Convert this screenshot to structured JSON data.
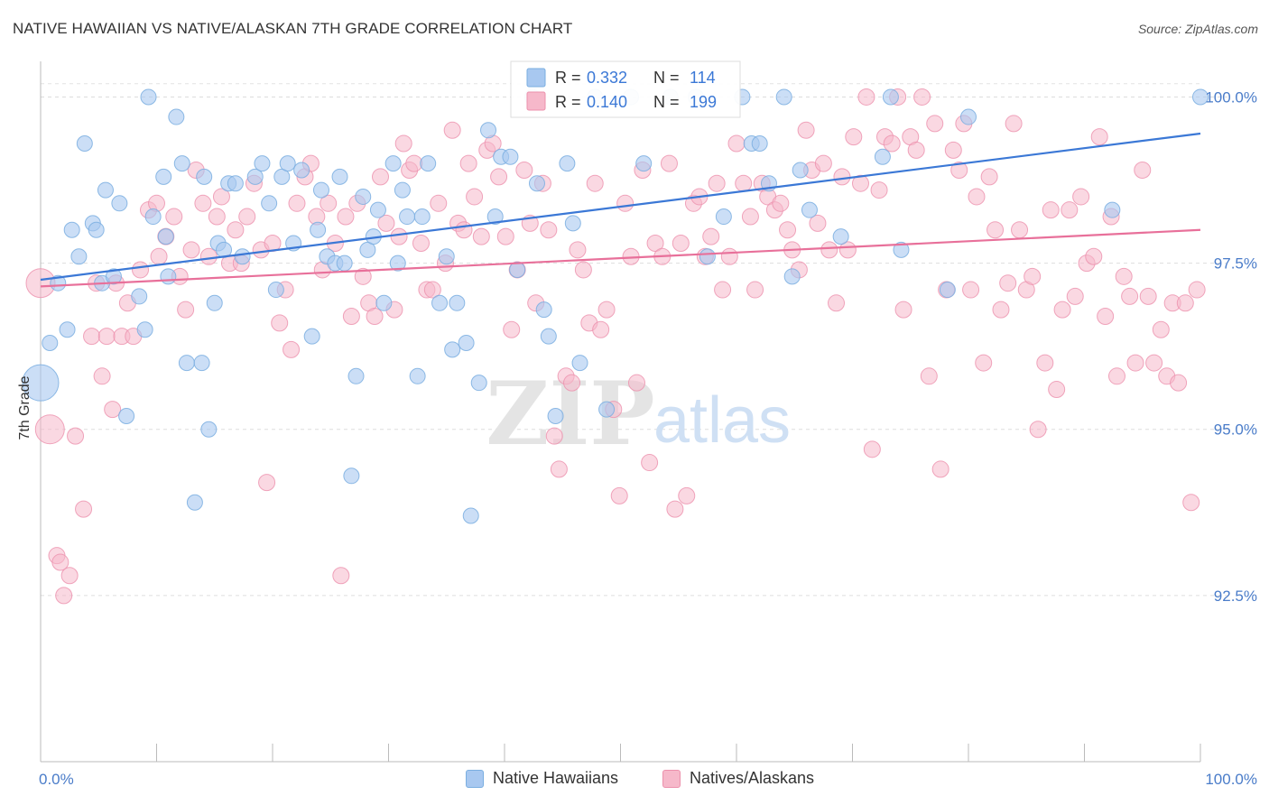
{
  "title": "NATIVE HAWAIIAN VS NATIVE/ALASKAN 7TH GRADE CORRELATION CHART",
  "source": "Source: ZipAtlas.com",
  "watermark": {
    "zip": "ZIP",
    "atlas": "atlas"
  },
  "colors": {
    "blue_fill": "#a8c8f0",
    "blue_stroke": "#7aaee0",
    "blue_line": "#3b78d6",
    "pink_fill": "#f6b8ca",
    "pink_stroke": "#ec90ac",
    "pink_line": "#e8709a",
    "tick_label": "#4a7cc9",
    "grid": "#dddddd"
  },
  "legend": {
    "rows": [
      {
        "series": "Native Hawaiians",
        "r_label": "R =",
        "r_value": "0.332",
        "n_label": "N =",
        "n_value": "114"
      },
      {
        "series": "Natives/Alaskans",
        "r_label": "R =",
        "r_value": "0.140",
        "n_label": "N =",
        "n_value": "199"
      }
    ]
  },
  "bottom_legend": [
    "Native Hawaiians",
    "Natives/Alaskans"
  ],
  "chart_data": {
    "type": "scatter",
    "title": "NATIVE HAWAIIAN VS NATIVE/ALASKAN 7TH GRADE CORRELATION CHART",
    "xlabel": "",
    "ylabel": "7th Grade",
    "xlim": [
      0,
      100
    ],
    "ylim": [
      90.0,
      100.4
    ],
    "x_tick_labels": [
      "0.0%",
      "100.0%"
    ],
    "y_ticks": [
      92.5,
      95.0,
      97.5,
      100.0
    ],
    "y_tick_labels": [
      "92.5%",
      "95.0%",
      "97.5%",
      "100.0%"
    ],
    "grid": "horizontal dashed",
    "series": [
      {
        "name": "Native Hawaiians",
        "color": "#a8c8f0",
        "trend": {
          "x": [
            0,
            100
          ],
          "y": [
            97.25,
            99.45
          ]
        },
        "points": [
          [
            0,
            95.7
          ],
          [
            0.8,
            96.3
          ],
          [
            1.5,
            97.2
          ],
          [
            2.3,
            96.5
          ],
          [
            2.7,
            98.0
          ],
          [
            3.3,
            97.6
          ],
          [
            3.8,
            99.3
          ],
          [
            4.5,
            98.1
          ],
          [
            4.8,
            98.0
          ],
          [
            5.3,
            97.2
          ],
          [
            5.6,
            98.6
          ],
          [
            6.3,
            97.3
          ],
          [
            6.8,
            98.4
          ],
          [
            7.4,
            95.2
          ],
          [
            8.5,
            97.0
          ],
          [
            9.0,
            96.5
          ],
          [
            9.3,
            100.0
          ],
          [
            9.7,
            98.2
          ],
          [
            10.6,
            98.8
          ],
          [
            10.8,
            97.9
          ],
          [
            11.0,
            97.3
          ],
          [
            11.7,
            99.7
          ],
          [
            12.2,
            99.0
          ],
          [
            12.6,
            96.0
          ],
          [
            13.3,
            93.9
          ],
          [
            13.9,
            96.0
          ],
          [
            14.1,
            98.8
          ],
          [
            14.5,
            95.0
          ],
          [
            15.0,
            96.9
          ],
          [
            15.3,
            97.8
          ],
          [
            15.8,
            97.7
          ],
          [
            16.2,
            98.7
          ],
          [
            16.8,
            98.7
          ],
          [
            17.4,
            97.6
          ],
          [
            18.5,
            98.8
          ],
          [
            19.1,
            99.0
          ],
          [
            19.7,
            98.4
          ],
          [
            20.3,
            97.1
          ],
          [
            20.8,
            98.8
          ],
          [
            21.3,
            99.0
          ],
          [
            21.8,
            97.8
          ],
          [
            22.5,
            98.9
          ],
          [
            23.4,
            96.4
          ],
          [
            23.9,
            98.0
          ],
          [
            24.2,
            98.6
          ],
          [
            24.7,
            97.6
          ],
          [
            25.4,
            97.5
          ],
          [
            25.8,
            98.8
          ],
          [
            26.2,
            97.5
          ],
          [
            26.8,
            94.3
          ],
          [
            27.2,
            95.8
          ],
          [
            27.8,
            98.5
          ],
          [
            28.2,
            97.7
          ],
          [
            28.7,
            97.9
          ],
          [
            29.1,
            98.3
          ],
          [
            29.6,
            96.9
          ],
          [
            30.4,
            99.0
          ],
          [
            30.8,
            97.5
          ],
          [
            31.2,
            98.6
          ],
          [
            31.6,
            98.2
          ],
          [
            32.5,
            95.8
          ],
          [
            32.9,
            98.2
          ],
          [
            33.4,
            99.0
          ],
          [
            34.4,
            96.9
          ],
          [
            35.0,
            97.6
          ],
          [
            35.5,
            96.2
          ],
          [
            35.9,
            96.9
          ],
          [
            36.7,
            96.3
          ],
          [
            37.1,
            93.7
          ],
          [
            37.8,
            95.7
          ],
          [
            38.6,
            99.5
          ],
          [
            39.2,
            98.2
          ],
          [
            39.7,
            99.1
          ],
          [
            40.5,
            99.1
          ],
          [
            41.1,
            97.4
          ],
          [
            42.4,
            100.0
          ],
          [
            42.8,
            98.7
          ],
          [
            43.4,
            96.8
          ],
          [
            43.8,
            96.4
          ],
          [
            44.4,
            95.2
          ],
          [
            45.4,
            99.0
          ],
          [
            45.9,
            98.1
          ],
          [
            46.5,
            96.0
          ],
          [
            47.8,
            100.0
          ],
          [
            48.8,
            95.3
          ],
          [
            50.9,
            100.0
          ],
          [
            52.0,
            99.0
          ],
          [
            54.3,
            100.0
          ],
          [
            56.5,
            100.0
          ],
          [
            57.5,
            97.6
          ],
          [
            58.9,
            98.2
          ],
          [
            60.5,
            100.0
          ],
          [
            61.3,
            99.3
          ],
          [
            62.0,
            99.3
          ],
          [
            62.8,
            98.7
          ],
          [
            64.1,
            100.0
          ],
          [
            64.8,
            97.3
          ],
          [
            65.5,
            98.9
          ],
          [
            66.3,
            98.3
          ],
          [
            69.0,
            97.9
          ],
          [
            72.6,
            99.1
          ],
          [
            73.3,
            100.0
          ],
          [
            74.2,
            97.7
          ],
          [
            78.2,
            97.1
          ],
          [
            80.0,
            99.7
          ],
          [
            92.4,
            98.3
          ],
          [
            100.0,
            100.0
          ]
        ]
      },
      {
        "name": "Natives/Alaskans",
        "color": "#f6b8ca",
        "trend": {
          "x": [
            0,
            100
          ],
          "y": [
            97.15,
            98.0
          ]
        },
        "points": [
          [
            0,
            97.2
          ],
          [
            0.8,
            95.0
          ],
          [
            1.4,
            93.1
          ],
          [
            1.7,
            93.0
          ],
          [
            2.0,
            92.5
          ],
          [
            2.5,
            92.8
          ],
          [
            3.0,
            94.9
          ],
          [
            3.7,
            93.8
          ],
          [
            4.4,
            96.4
          ],
          [
            4.8,
            97.2
          ],
          [
            5.3,
            95.8
          ],
          [
            5.7,
            96.4
          ],
          [
            6.2,
            95.3
          ],
          [
            6.5,
            97.2
          ],
          [
            7.0,
            96.4
          ],
          [
            7.5,
            96.9
          ],
          [
            8.0,
            96.4
          ],
          [
            8.6,
            97.4
          ],
          [
            9.3,
            98.3
          ],
          [
            10.0,
            98.4
          ],
          [
            10.2,
            97.6
          ],
          [
            10.8,
            97.9
          ],
          [
            11.5,
            98.2
          ],
          [
            12.0,
            97.3
          ],
          [
            12.5,
            96.8
          ],
          [
            13.0,
            97.7
          ],
          [
            13.4,
            98.9
          ],
          [
            14.0,
            98.4
          ],
          [
            14.5,
            97.6
          ],
          [
            15.2,
            98.2
          ],
          [
            15.6,
            98.5
          ],
          [
            16.3,
            97.5
          ],
          [
            16.8,
            98.0
          ],
          [
            17.3,
            97.5
          ],
          [
            17.8,
            98.2
          ],
          [
            18.4,
            98.7
          ],
          [
            19.0,
            97.7
          ],
          [
            19.5,
            94.2
          ],
          [
            20.0,
            97.8
          ],
          [
            20.6,
            96.6
          ],
          [
            21.1,
            97.1
          ],
          [
            21.6,
            96.2
          ],
          [
            22.1,
            98.4
          ],
          [
            22.8,
            98.8
          ],
          [
            23.3,
            99.0
          ],
          [
            23.8,
            98.2
          ],
          [
            24.3,
            97.4
          ],
          [
            24.8,
            98.4
          ],
          [
            25.4,
            97.8
          ],
          [
            25.9,
            92.8
          ],
          [
            26.3,
            98.2
          ],
          [
            26.8,
            96.7
          ],
          [
            27.3,
            98.4
          ],
          [
            27.8,
            97.3
          ],
          [
            28.3,
            96.9
          ],
          [
            28.8,
            96.7
          ],
          [
            29.3,
            98.8
          ],
          [
            29.8,
            98.1
          ],
          [
            30.5,
            96.8
          ],
          [
            30.9,
            97.9
          ],
          [
            31.3,
            99.3
          ],
          [
            31.8,
            98.9
          ],
          [
            32.2,
            99.0
          ],
          [
            32.8,
            97.8
          ],
          [
            33.3,
            97.1
          ],
          [
            33.8,
            97.1
          ],
          [
            34.3,
            98.4
          ],
          [
            34.9,
            97.5
          ],
          [
            35.5,
            99.5
          ],
          [
            36.0,
            98.1
          ],
          [
            36.5,
            98.0
          ],
          [
            36.9,
            99.0
          ],
          [
            37.4,
            98.5
          ],
          [
            38.0,
            97.9
          ],
          [
            38.5,
            99.2
          ],
          [
            39.0,
            99.3
          ],
          [
            39.5,
            98.8
          ],
          [
            40.1,
            97.9
          ],
          [
            40.6,
            96.5
          ],
          [
            41.1,
            97.4
          ],
          [
            41.7,
            98.9
          ],
          [
            42.2,
            98.1
          ],
          [
            42.7,
            96.9
          ],
          [
            43.3,
            98.7
          ],
          [
            43.8,
            98.0
          ],
          [
            44.3,
            94.9
          ],
          [
            44.7,
            94.4
          ],
          [
            45.3,
            95.8
          ],
          [
            45.8,
            95.7
          ],
          [
            46.3,
            97.7
          ],
          [
            46.8,
            97.4
          ],
          [
            47.3,
            96.6
          ],
          [
            47.8,
            98.7
          ],
          [
            48.3,
            96.5
          ],
          [
            48.8,
            96.8
          ],
          [
            49.4,
            95.3
          ],
          [
            49.9,
            94.0
          ],
          [
            50.4,
            98.4
          ],
          [
            50.9,
            97.6
          ],
          [
            51.4,
            95.7
          ],
          [
            51.9,
            98.9
          ],
          [
            52.5,
            94.5
          ],
          [
            53.0,
            97.8
          ],
          [
            53.6,
            97.6
          ],
          [
            54.2,
            99.0
          ],
          [
            54.7,
            93.8
          ],
          [
            55.2,
            97.8
          ],
          [
            55.7,
            94.0
          ],
          [
            56.3,
            98.4
          ],
          [
            56.8,
            98.5
          ],
          [
            57.3,
            97.6
          ],
          [
            57.8,
            97.9
          ],
          [
            58.3,
            98.7
          ],
          [
            58.8,
            97.1
          ],
          [
            59.4,
            97.6
          ],
          [
            60.0,
            99.3
          ],
          [
            60.6,
            98.7
          ],
          [
            61.2,
            98.2
          ],
          [
            61.6,
            97.1
          ],
          [
            62.2,
            98.7
          ],
          [
            62.7,
            98.5
          ],
          [
            63.3,
            98.3
          ],
          [
            63.8,
            98.4
          ],
          [
            64.4,
            98.0
          ],
          [
            64.8,
            97.7
          ],
          [
            65.4,
            97.4
          ],
          [
            66.0,
            99.5
          ],
          [
            66.5,
            98.9
          ],
          [
            67.0,
            98.1
          ],
          [
            67.5,
            99.0
          ],
          [
            68.0,
            97.7
          ],
          [
            68.6,
            96.9
          ],
          [
            69.1,
            98.8
          ],
          [
            69.6,
            97.7
          ],
          [
            70.1,
            99.4
          ],
          [
            70.7,
            98.7
          ],
          [
            71.2,
            100.0
          ],
          [
            71.7,
            94.7
          ],
          [
            72.3,
            98.6
          ],
          [
            72.8,
            99.4
          ],
          [
            73.4,
            99.3
          ],
          [
            73.9,
            100.0
          ],
          [
            74.4,
            96.8
          ],
          [
            75.0,
            99.4
          ],
          [
            75.5,
            99.2
          ],
          [
            76.0,
            100.0
          ],
          [
            76.6,
            95.8
          ],
          [
            77.1,
            99.6
          ],
          [
            77.6,
            94.4
          ],
          [
            78.1,
            97.1
          ],
          [
            78.7,
            99.2
          ],
          [
            79.2,
            98.9
          ],
          [
            79.6,
            99.6
          ],
          [
            80.2,
            97.1
          ],
          [
            80.7,
            98.5
          ],
          [
            81.3,
            96.0
          ],
          [
            81.8,
            98.8
          ],
          [
            82.3,
            98.0
          ],
          [
            82.8,
            96.8
          ],
          [
            83.4,
            97.2
          ],
          [
            83.9,
            99.6
          ],
          [
            84.4,
            98.0
          ],
          [
            85.0,
            97.1
          ],
          [
            85.5,
            97.3
          ],
          [
            86.0,
            95.0
          ],
          [
            86.6,
            96.0
          ],
          [
            87.1,
            98.3
          ],
          [
            87.6,
            95.6
          ],
          [
            88.1,
            96.8
          ],
          [
            88.7,
            98.3
          ],
          [
            89.2,
            97.0
          ],
          [
            89.7,
            98.5
          ],
          [
            90.2,
            97.5
          ],
          [
            90.8,
            97.6
          ],
          [
            91.3,
            99.4
          ],
          [
            91.8,
            96.7
          ],
          [
            92.3,
            98.2
          ],
          [
            92.8,
            95.8
          ],
          [
            93.4,
            97.3
          ],
          [
            93.9,
            97.0
          ],
          [
            94.4,
            96.0
          ],
          [
            95.0,
            98.9
          ],
          [
            95.5,
            97.0
          ],
          [
            96.0,
            96.0
          ],
          [
            96.6,
            96.5
          ],
          [
            97.1,
            95.8
          ],
          [
            97.6,
            96.9
          ],
          [
            98.1,
            95.7
          ],
          [
            98.7,
            96.9
          ],
          [
            99.2,
            93.9
          ],
          [
            99.7,
            97.1
          ]
        ]
      }
    ]
  }
}
